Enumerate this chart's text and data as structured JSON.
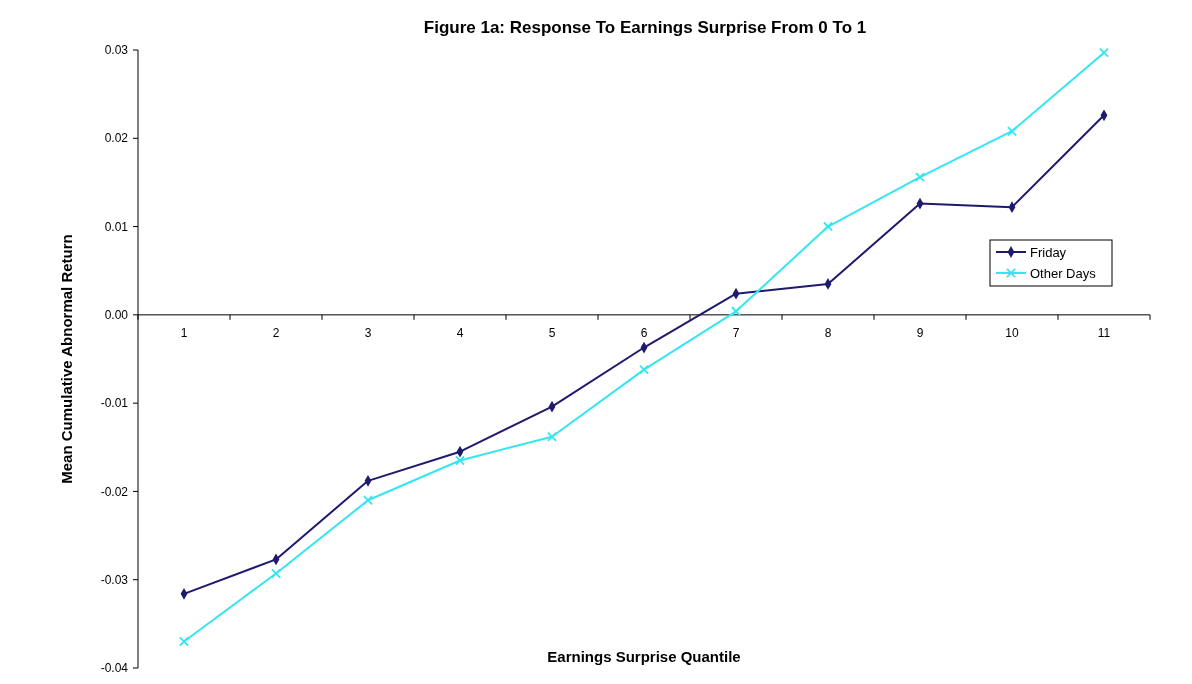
{
  "chart_data": {
    "type": "line",
    "title": "Figure 1a: Response To Earnings Surprise From 0 To 1",
    "xlabel": "Earnings Surprise Quantile",
    "ylabel": "Mean Cumulative Abnormal Return",
    "categories": [
      "1",
      "2",
      "3",
      "4",
      "5",
      "6",
      "7",
      "8",
      "9",
      "10",
      "11"
    ],
    "series": [
      {
        "name": "Friday",
        "color": "#1f1a6e",
        "marker": "diamond",
        "values": [
          -0.0316,
          -0.0277,
          -0.0188,
          -0.0155,
          -0.0104,
          -0.0037,
          0.0024,
          0.0035,
          0.0126,
          0.0122,
          0.0226
        ]
      },
      {
        "name": "Other Days",
        "color": "#33e6f0",
        "marker": "cross",
        "values": [
          -0.037,
          -0.0293,
          -0.021,
          -0.0165,
          -0.0138,
          -0.0062,
          0.0004,
          0.01,
          0.0156,
          0.0208,
          0.0297
        ]
      }
    ],
    "ylim": [
      -0.04,
      0.03
    ],
    "yticks": [
      -0.04,
      -0.03,
      -0.02,
      -0.01,
      {
        "value": 0,
        "label": "0.00"
      },
      0.01,
      0.02,
      0.03
    ],
    "grid": false,
    "legend": "right"
  }
}
